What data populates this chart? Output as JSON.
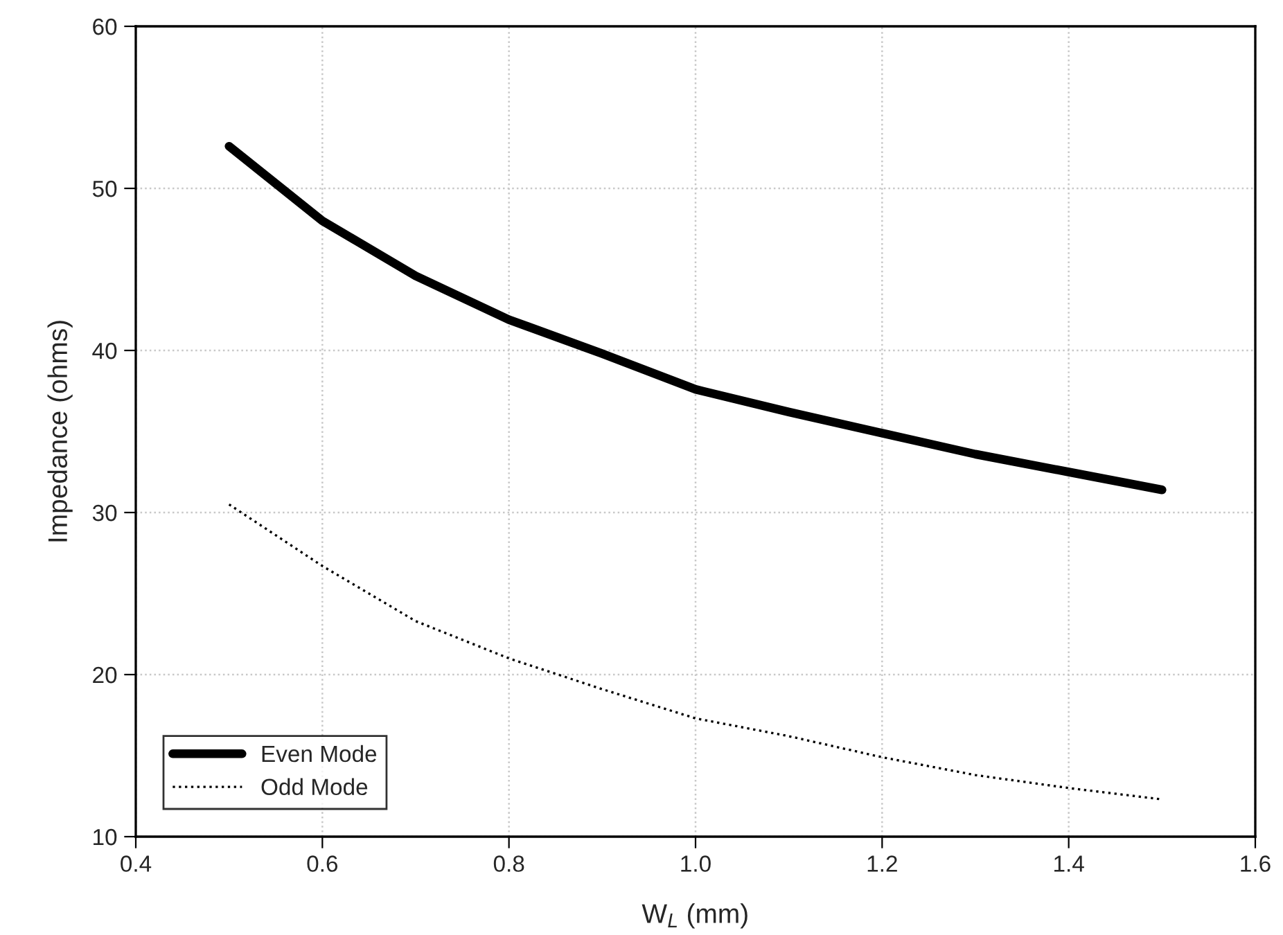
{
  "chart_data": {
    "type": "line",
    "xlabel": "W$_{L}$ (mm)",
    "ylabel": "Impedance (ohms)",
    "x": [
      0.5,
      0.6,
      0.7,
      0.8,
      0.9,
      1.0,
      1.1,
      1.2,
      1.3,
      1.4,
      1.5
    ],
    "series": [
      {
        "name": "Even Mode",
        "color": "#000000",
        "line_style": "solid",
        "values": [
          52.6,
          48.0,
          44.6,
          41.9,
          39.8,
          37.6,
          36.2,
          34.9,
          33.6,
          32.5,
          31.4
        ]
      },
      {
        "name": "Odd Mode",
        "color": "#000000",
        "line_style": "dotted",
        "values": [
          30.5,
          26.7,
          23.3,
          21.0,
          19.1,
          17.3,
          16.2,
          14.9,
          13.8,
          13.0,
          12.3
        ]
      }
    ],
    "xlim": [
      0.4,
      1.6
    ],
    "xticks": [
      {
        "value": 0.4,
        "label": "0.4"
      },
      {
        "value": 0.6,
        "label": "0.6"
      },
      {
        "value": 0.8,
        "label": "0.8"
      },
      {
        "value": 1.0,
        "label": "1.0"
      },
      {
        "value": 1.2,
        "label": "1.2"
      },
      {
        "value": 1.4,
        "label": "1.4"
      },
      {
        "value": 1.6,
        "label": "1.6"
      }
    ],
    "ylim": [
      10,
      60
    ],
    "yticks": [
      10,
      20,
      30,
      40,
      50,
      60
    ],
    "grid": true,
    "legend": "bottom left"
  }
}
